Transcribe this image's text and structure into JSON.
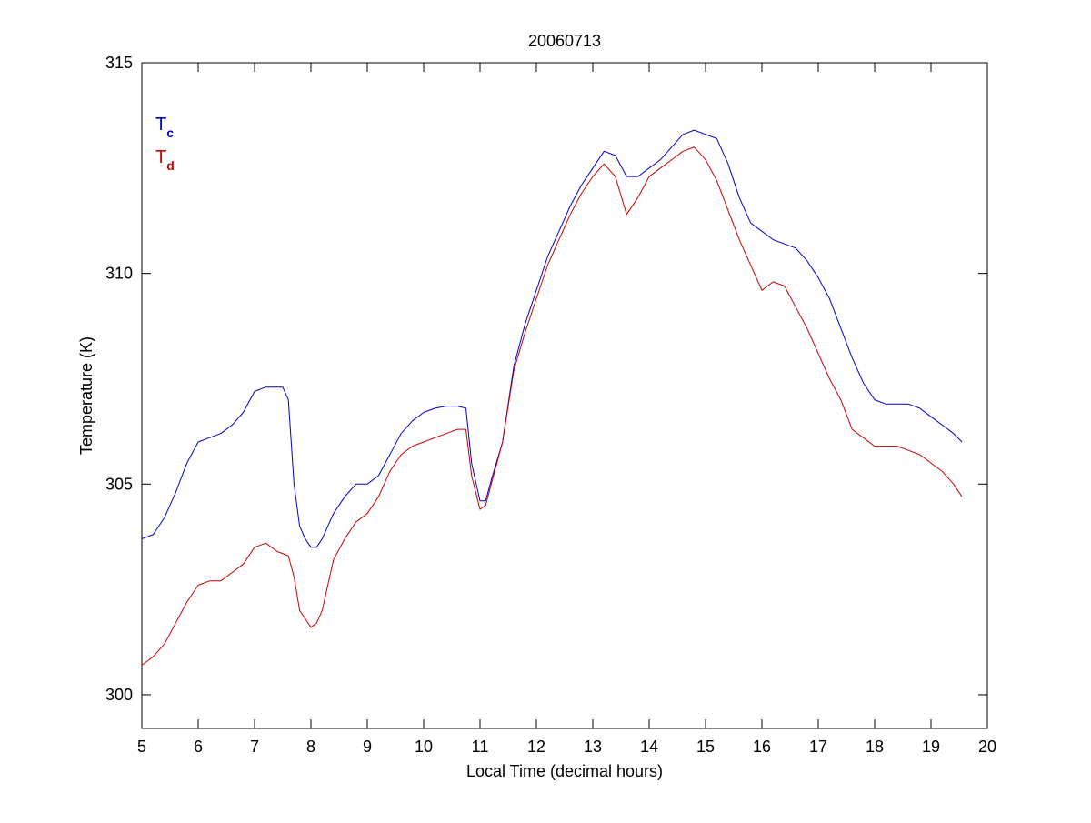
{
  "chart_data": {
    "type": "line",
    "title": "20060713",
    "xlabel": "Local Time (decimal hours)",
    "ylabel": "Temperature (K)",
    "xlim": [
      5,
      20
    ],
    "ylim": [
      299.2,
      315
    ],
    "xticks": [
      5,
      6,
      7,
      8,
      9,
      10,
      11,
      12,
      13,
      14,
      15,
      16,
      17,
      18,
      19,
      20
    ],
    "yticks": [
      300,
      305,
      310,
      315
    ],
    "grid": false,
    "legend_position": "top-left",
    "series": [
      {
        "name": "T",
        "subscript": "c",
        "color": "#0000cc",
        "x": [
          5.0,
          5.2,
          5.4,
          5.6,
          5.8,
          6.0,
          6.2,
          6.4,
          6.6,
          6.8,
          7.0,
          7.2,
          7.4,
          7.5,
          7.6,
          7.7,
          7.8,
          7.9,
          8.0,
          8.1,
          8.2,
          8.3,
          8.4,
          8.6,
          8.8,
          9.0,
          9.2,
          9.4,
          9.6,
          9.8,
          10.0,
          10.2,
          10.4,
          10.6,
          10.75,
          10.85,
          11.0,
          11.1,
          11.2,
          11.4,
          11.6,
          11.8,
          12.0,
          12.2,
          12.4,
          12.6,
          12.8,
          13.0,
          13.2,
          13.4,
          13.6,
          13.8,
          14.0,
          14.2,
          14.4,
          14.6,
          14.8,
          15.0,
          15.2,
          15.4,
          15.6,
          15.8,
          16.0,
          16.2,
          16.4,
          16.6,
          16.8,
          17.0,
          17.2,
          17.4,
          17.6,
          17.8,
          18.0,
          18.2,
          18.4,
          18.6,
          18.8,
          19.0,
          19.2,
          19.4,
          19.55
        ],
        "values": [
          303.7,
          303.8,
          304.2,
          304.8,
          305.5,
          306.0,
          306.1,
          306.2,
          306.4,
          306.7,
          307.2,
          307.3,
          307.3,
          307.3,
          307.0,
          305.0,
          304.0,
          303.7,
          303.5,
          303.5,
          303.7,
          304.0,
          304.3,
          304.7,
          305.0,
          305.0,
          305.2,
          305.7,
          306.2,
          306.5,
          306.7,
          306.8,
          306.85,
          306.85,
          306.8,
          305.5,
          304.6,
          304.6,
          305.1,
          306.0,
          307.8,
          308.8,
          309.6,
          310.4,
          311.0,
          311.6,
          312.1,
          312.5,
          312.9,
          312.8,
          312.3,
          312.3,
          312.5,
          312.7,
          313.0,
          313.3,
          313.4,
          313.3,
          313.2,
          312.6,
          311.8,
          311.2,
          311.0,
          310.8,
          310.7,
          310.6,
          310.3,
          309.9,
          309.4,
          308.7,
          308.0,
          307.4,
          307.0,
          306.9,
          306.9,
          306.9,
          306.8,
          306.6,
          306.4,
          306.2,
          306.0
        ]
      },
      {
        "name": "T",
        "subscript": "d",
        "color": "#cc0000",
        "x": [
          5.0,
          5.2,
          5.4,
          5.6,
          5.8,
          6.0,
          6.2,
          6.4,
          6.6,
          6.8,
          7.0,
          7.2,
          7.4,
          7.6,
          7.7,
          7.8,
          7.9,
          8.0,
          8.1,
          8.2,
          8.3,
          8.4,
          8.6,
          8.8,
          9.0,
          9.2,
          9.4,
          9.6,
          9.8,
          10.0,
          10.2,
          10.4,
          10.6,
          10.75,
          10.85,
          11.0,
          11.1,
          11.2,
          11.4,
          11.6,
          11.8,
          12.0,
          12.2,
          12.4,
          12.6,
          12.8,
          13.0,
          13.2,
          13.4,
          13.6,
          13.8,
          14.0,
          14.2,
          14.4,
          14.6,
          14.8,
          15.0,
          15.2,
          15.4,
          15.6,
          15.8,
          16.0,
          16.2,
          16.4,
          16.6,
          16.8,
          17.0,
          17.2,
          17.4,
          17.6,
          17.8,
          18.0,
          18.2,
          18.4,
          18.6,
          18.8,
          19.0,
          19.2,
          19.4,
          19.55
        ],
        "values": [
          300.7,
          300.9,
          301.2,
          301.7,
          302.2,
          302.6,
          302.7,
          302.7,
          302.9,
          303.1,
          303.5,
          303.6,
          303.4,
          303.3,
          302.8,
          302.0,
          301.8,
          301.6,
          301.7,
          302.0,
          302.6,
          303.2,
          303.7,
          304.1,
          304.3,
          304.7,
          305.3,
          305.7,
          305.9,
          306.0,
          306.1,
          306.2,
          306.3,
          306.3,
          305.2,
          304.4,
          304.5,
          305.0,
          306.0,
          307.7,
          308.6,
          309.4,
          310.2,
          310.8,
          311.4,
          311.9,
          312.3,
          312.6,
          312.3,
          311.4,
          311.8,
          312.3,
          312.5,
          312.7,
          312.9,
          313.0,
          312.7,
          312.2,
          311.5,
          310.8,
          310.2,
          309.6,
          309.8,
          309.7,
          309.2,
          308.7,
          308.1,
          307.5,
          307.0,
          306.3,
          306.1,
          305.9,
          305.9,
          305.9,
          305.8,
          305.7,
          305.5,
          305.3,
          305.0,
          304.7
        ]
      }
    ]
  }
}
